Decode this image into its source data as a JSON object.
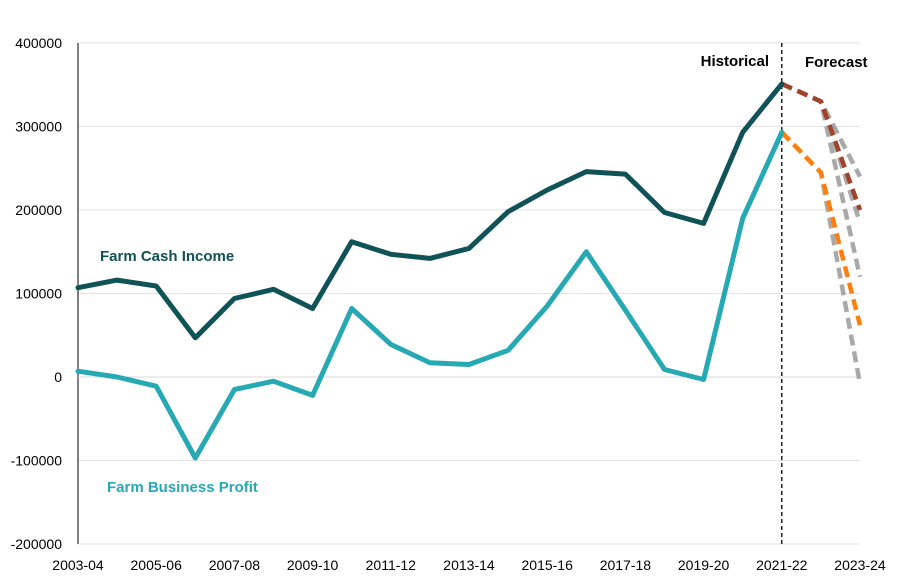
{
  "chart_data": {
    "type": "line",
    "title": "",
    "xlabel": "",
    "ylabel": "",
    "ylim": [
      -200000,
      400000
    ],
    "yticks": [
      -200000,
      -100000,
      0,
      100000,
      200000,
      300000,
      400000
    ],
    "ytick_labels": [
      "-200000",
      "-100000",
      "0",
      "100000",
      "200000",
      "300000",
      "400000"
    ],
    "categories": [
      "2003-04",
      "2004-05",
      "2005-06",
      "2006-07",
      "2007-08",
      "2008-09",
      "2009-10",
      "2010-11",
      "2011-12",
      "2012-13",
      "2013-14",
      "2014-15",
      "2015-16",
      "2016-17",
      "2017-18",
      "2018-19",
      "2019-20",
      "2020-21",
      "2021-22",
      "2022-23",
      "2023-24"
    ],
    "xtick_labels": [
      "2003-04",
      "2005-06",
      "2007-08",
      "2009-10",
      "2011-12",
      "2013-14",
      "2015-16",
      "2017-18",
      "2019-20",
      "2021-22",
      "2023-24"
    ],
    "grid": "horizontal",
    "divider_at": "2021-22",
    "annotations": {
      "historical": "Historical",
      "forecast": "Forecast"
    },
    "series": [
      {
        "name": "Farm Cash Income",
        "color": "#0f5257",
        "style": "solid",
        "values": [
          107000,
          116000,
          109000,
          47000,
          94000,
          105000,
          82000,
          162000,
          147000,
          142000,
          154000,
          198000,
          224000,
          246000,
          243000,
          197000,
          184000,
          293000,
          351000,
          null,
          null
        ]
      },
      {
        "name": "Farm Business Profit",
        "color": "#27a9b3",
        "style": "solid",
        "values": [
          7000,
          0,
          -11000,
          -97000,
          -15000,
          -5000,
          -22000,
          82000,
          39000,
          17000,
          15000,
          32000,
          85000,
          150000,
          80000,
          9000,
          -3000,
          190000,
          293000,
          null,
          null
        ]
      }
    ],
    "forecast_series": [
      {
        "color": "#a9a9a9",
        "style": "dashed",
        "values": [
          null,
          null,
          null,
          null,
          null,
          null,
          null,
          null,
          null,
          null,
          null,
          null,
          null,
          null,
          null,
          null,
          null,
          null,
          351000,
          330000,
          240000
        ]
      },
      {
        "color": "#a9a9a9",
        "style": "dashed",
        "values": [
          null,
          null,
          null,
          null,
          null,
          null,
          null,
          null,
          null,
          null,
          null,
          null,
          null,
          null,
          null,
          null,
          null,
          null,
          351000,
          330000,
          185000
        ]
      },
      {
        "color": "#a9a9a9",
        "style": "dashed",
        "values": [
          null,
          null,
          null,
          null,
          null,
          null,
          null,
          null,
          null,
          null,
          null,
          null,
          null,
          null,
          null,
          null,
          null,
          null,
          351000,
          330000,
          120000
        ]
      },
      {
        "color": "#a9a9a9",
        "style": "dashed",
        "values": [
          null,
          null,
          null,
          null,
          null,
          null,
          null,
          null,
          null,
          null,
          null,
          null,
          null,
          null,
          null,
          null,
          null,
          null,
          293000,
          245000,
          -8000
        ]
      },
      {
        "color": "#a0432a",
        "style": "dashed",
        "values": [
          null,
          null,
          null,
          null,
          null,
          null,
          null,
          null,
          null,
          null,
          null,
          null,
          null,
          null,
          null,
          null,
          null,
          null,
          351000,
          330000,
          200000
        ]
      },
      {
        "color": "#ff7f0e",
        "style": "dashed",
        "values": [
          null,
          null,
          null,
          null,
          null,
          null,
          null,
          null,
          null,
          null,
          null,
          null,
          null,
          null,
          null,
          null,
          null,
          null,
          293000,
          245000,
          62000
        ]
      }
    ]
  }
}
